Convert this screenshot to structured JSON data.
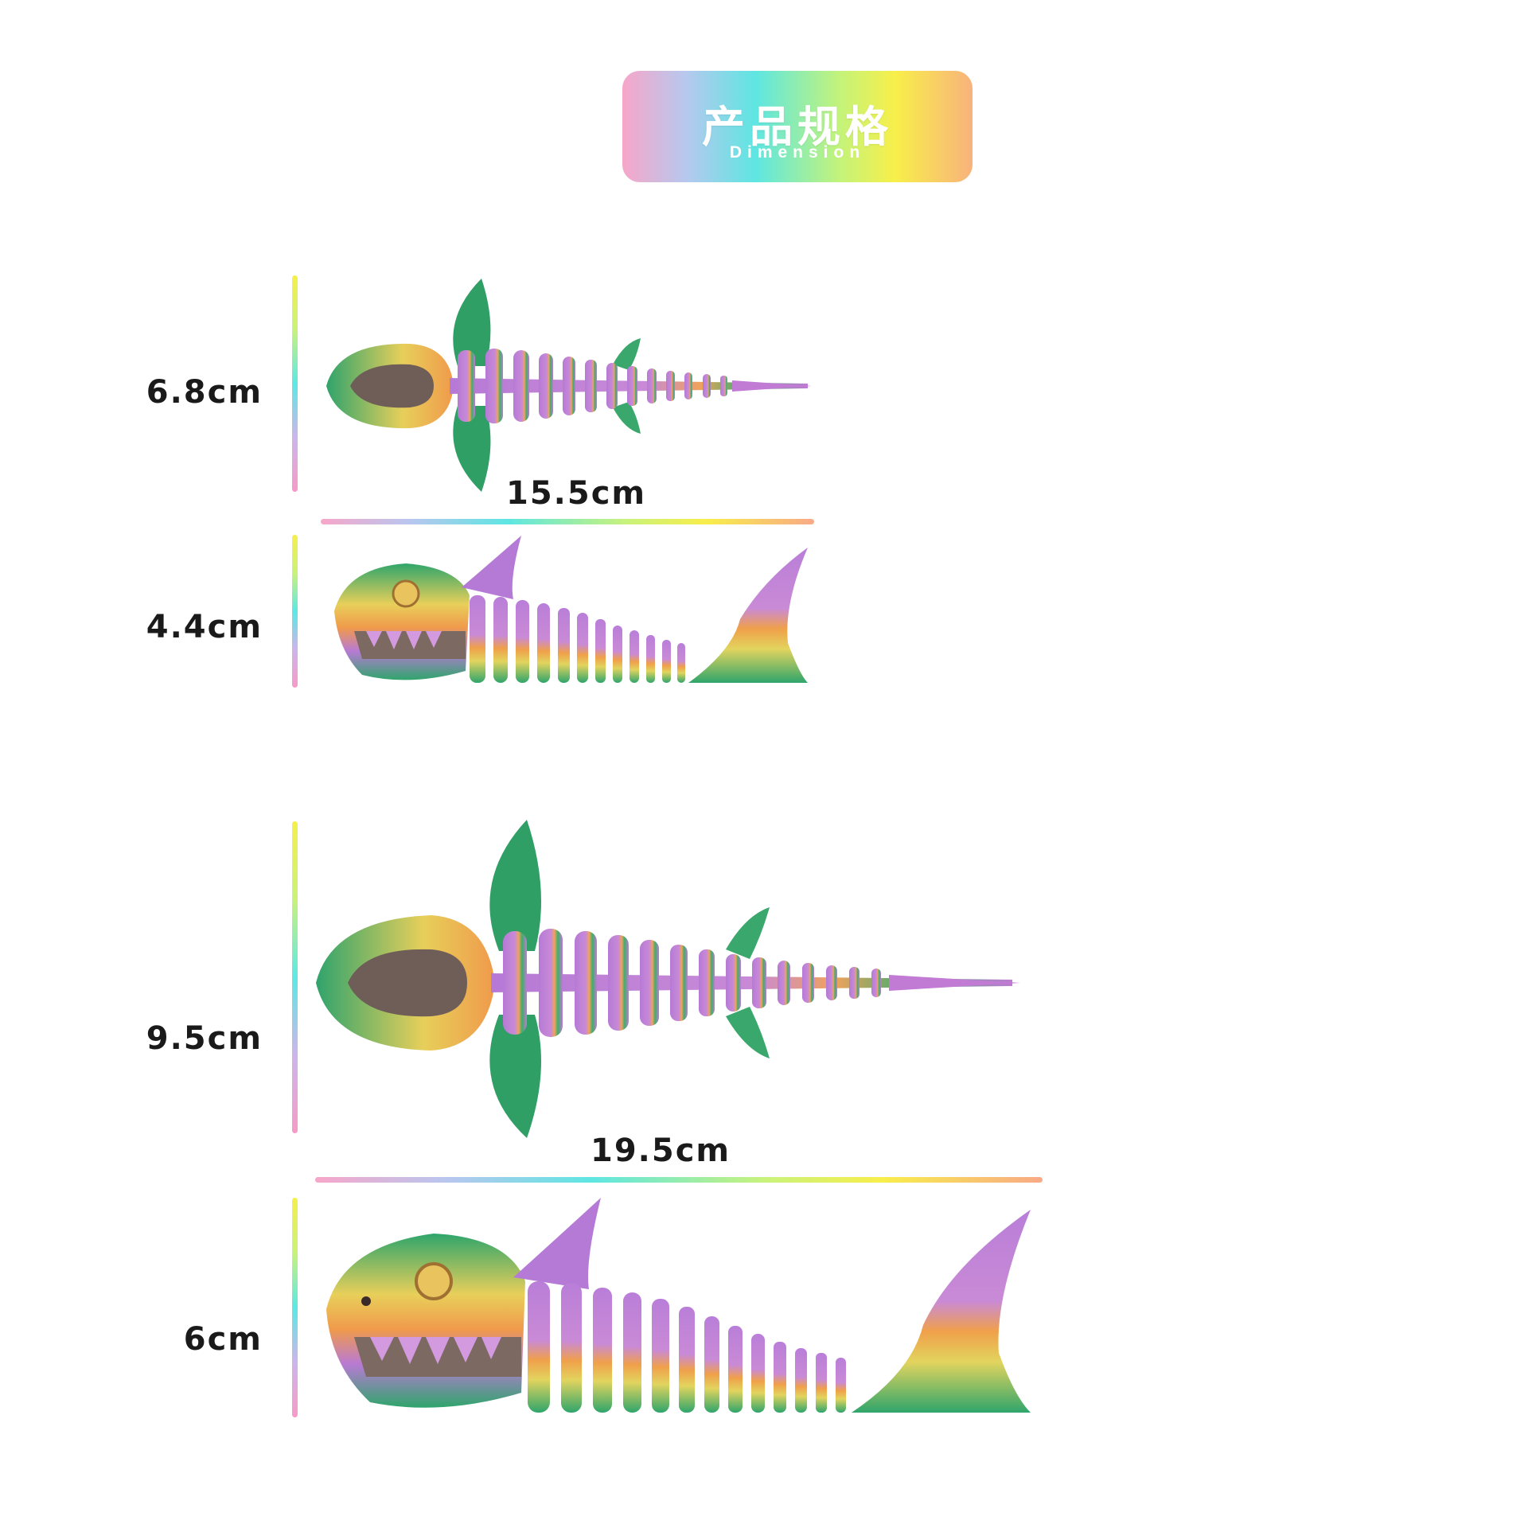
{
  "header": {
    "title": "产品规格",
    "subtitle": "Dimension"
  },
  "specs": {
    "small_top_height": "6.8cm",
    "small_length": "15.5cm",
    "small_side_height": "4.4cm",
    "large_top_height": "9.5cm",
    "large_length": "19.5cm",
    "large_side_height": "6cm"
  },
  "colors": {
    "purple": "#b47bd3",
    "green": "#2fa56b",
    "orange": "#f0a04a",
    "yellow": "#e7d25a",
    "text": "#1a1a1a"
  }
}
